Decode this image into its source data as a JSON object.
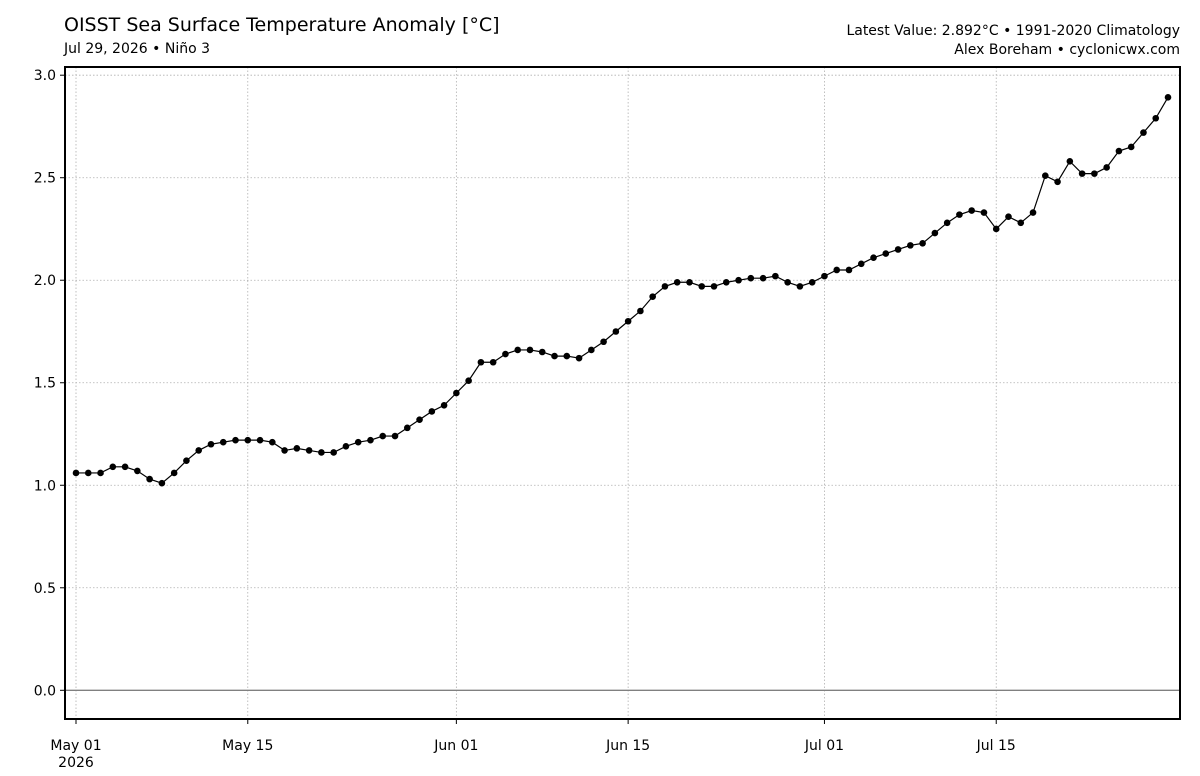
{
  "header": {
    "title": "OISST Sea Surface Temperature Anomaly [°C]",
    "subtitle": "Jul 29, 2026 • Niño 3",
    "info_line1": "Latest Value: 2.892°C • 1991-2020 Climatology",
    "info_line2": "Alex Boreham • cyclonicwx.com"
  },
  "chart_data": {
    "type": "line",
    "title": "OISST Sea Surface Temperature Anomaly [°C]",
    "xlabel": "",
    "ylabel": "",
    "x_start": "2026-05-01",
    "x_end": "2026-07-29",
    "ylim": [
      -0.14,
      3.04
    ],
    "y_ticks": [
      {
        "value": 0.0,
        "label": "0.0"
      },
      {
        "value": 0.5,
        "label": "0.5"
      },
      {
        "value": 1.0,
        "label": "1.0"
      },
      {
        "value": 1.5,
        "label": "1.5"
      },
      {
        "value": 2.0,
        "label": "2.0"
      },
      {
        "value": 2.5,
        "label": "2.5"
      },
      {
        "value": 3.0,
        "label": "3.0"
      }
    ],
    "x_ticks": [
      {
        "date": "2026-05-01",
        "label": "May 01",
        "label2": "2026"
      },
      {
        "date": "2026-05-15",
        "label": "May 15"
      },
      {
        "date": "2026-06-01",
        "label": "Jun 01"
      },
      {
        "date": "2026-06-15",
        "label": "Jun 15"
      },
      {
        "date": "2026-07-01",
        "label": "Jul 01"
      },
      {
        "date": "2026-07-15",
        "label": "Jul 15"
      }
    ],
    "grid": true,
    "zero_line": true,
    "series": [
      {
        "color": "#000000",
        "values": [
          1.06,
          1.06,
          1.06,
          1.09,
          1.09,
          1.07,
          1.03,
          1.01,
          1.06,
          1.12,
          1.17,
          1.2,
          1.21,
          1.22,
          1.22,
          1.22,
          1.21,
          1.17,
          1.18,
          1.17,
          1.16,
          1.16,
          1.19,
          1.21,
          1.22,
          1.24,
          1.24,
          1.28,
          1.32,
          1.36,
          1.39,
          1.45,
          1.51,
          1.6,
          1.6,
          1.64,
          1.66,
          1.66,
          1.65,
          1.63,
          1.63,
          1.62,
          1.66,
          1.7,
          1.75,
          1.8,
          1.85,
          1.92,
          1.97,
          1.99,
          1.99,
          1.97,
          1.97,
          1.99,
          2.0,
          2.01,
          2.01,
          2.02,
          1.99,
          1.97,
          1.99,
          2.02,
          2.05,
          2.05,
          2.08,
          2.11,
          2.13,
          2.15,
          2.17,
          2.18,
          2.23,
          2.28,
          2.32,
          2.34,
          2.33,
          2.25,
          2.31,
          2.28,
          2.33,
          2.51,
          2.48,
          2.58,
          2.52,
          2.52,
          2.55,
          2.63,
          2.65,
          2.72,
          2.79,
          2.892
        ]
      }
    ]
  }
}
